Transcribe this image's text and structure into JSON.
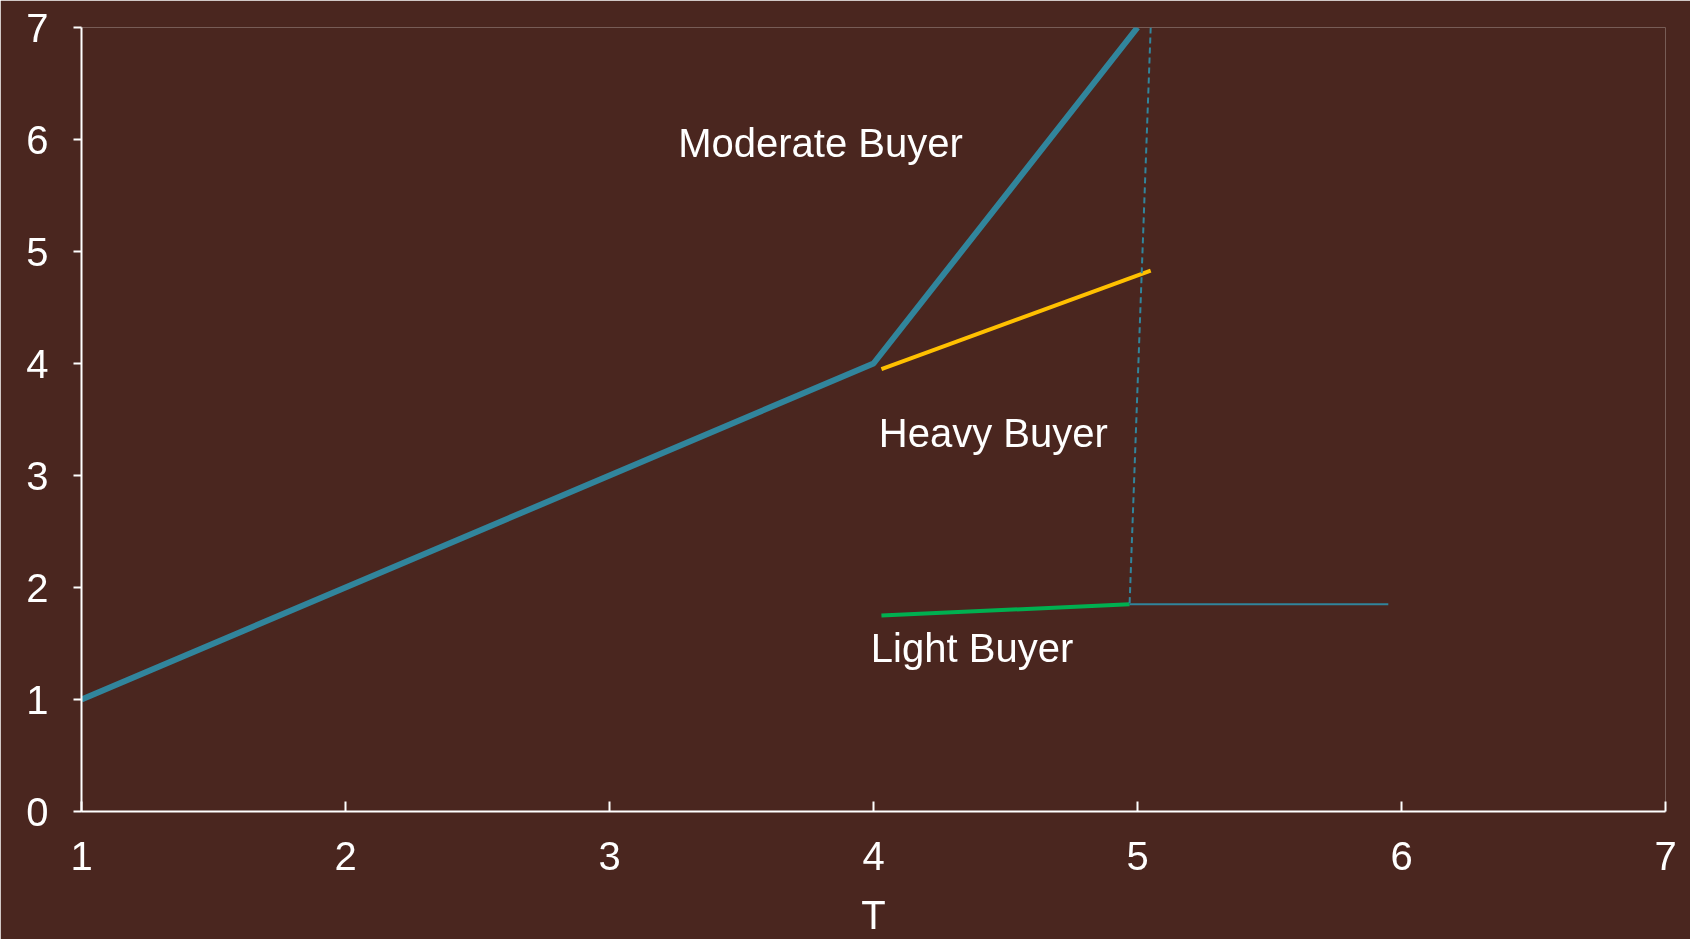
{
  "chart_data": {
    "type": "line",
    "xlabel": "T",
    "xlim": [
      1,
      7
    ],
    "ylim": [
      0,
      7
    ],
    "xticks": [
      1,
      2,
      3,
      4,
      5,
      6,
      7
    ],
    "yticks": [
      0,
      1,
      2,
      3,
      4,
      5,
      6,
      7
    ],
    "grid": false,
    "legend": false,
    "line_style": "solid",
    "marker": "none",
    "series": [
      {
        "name": "Moderate Buyer",
        "color": "#31859c",
        "x": [
          1,
          4,
          5
        ],
        "values": [
          1,
          4,
          7
        ]
      },
      {
        "name": "Heavy Buyer",
        "color": "#ffc000",
        "x": [
          4.03,
          5.05
        ],
        "values": [
          3.95,
          4.83
        ]
      },
      {
        "name": "Light Buyer",
        "color": "#00b050",
        "x": [
          4.03,
          4.97
        ],
        "values": [
          1.75,
          1.85
        ]
      },
      {
        "color": "#31859c",
        "line_style": "dashed",
        "x": [
          5.05,
          4.97
        ],
        "values": [
          7,
          1.85
        ]
      },
      {
        "color": "#31859c",
        "x": [
          4.97,
          5.95
        ],
        "values": [
          1.85,
          1.85
        ]
      }
    ]
  }
}
